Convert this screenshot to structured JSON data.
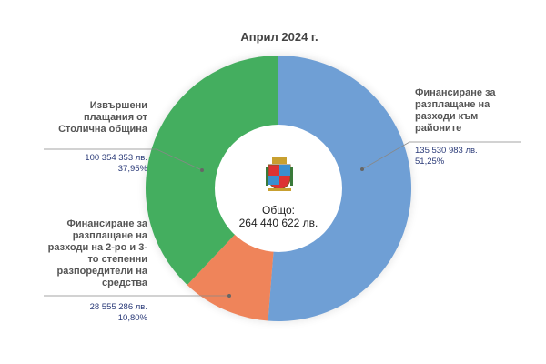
{
  "title": "Април  2024 г.",
  "center": {
    "label": "Общо:",
    "total": "264 440 622 лв."
  },
  "chart_data": {
    "type": "pie",
    "title": "Април  2024 г.",
    "donut": true,
    "slices": [
      {
        "label": "Финансиране за разплащане на разходи към районите",
        "value": 135530983,
        "value_text": "135 530 983 лв.",
        "percent": 51.25,
        "percent_text": "51,25%",
        "color": "#6f9fd5"
      },
      {
        "label": "Финансиране за разплащане на разходи на 2-ро и 3-то степенни разпоредители на средства",
        "value": 28555286,
        "value_text": "28 555 286 лв.",
        "percent": 10.8,
        "percent_text": "10,80%",
        "color": "#ef845a"
      },
      {
        "label": "Извършени плащания от Столична община",
        "value": 100354353,
        "value_text": "100 354 353 лв.",
        "percent": 37.95,
        "percent_text": "37,95%",
        "color": "#44ae5f"
      }
    ]
  }
}
